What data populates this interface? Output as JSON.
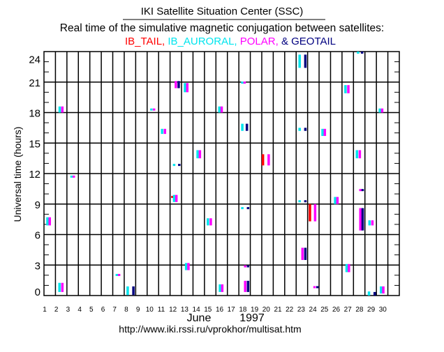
{
  "header": {
    "title": "IKI Satellite Situation Center (SSC)",
    "subtitle": "Real time of the simulative magnetic conjugation between satellites:",
    "sat_names": [
      "IB_TAIL,",
      "IB_AURORAL,",
      "POLAR,",
      "& GEOTAIL"
    ]
  },
  "footer": {
    "month": "June",
    "year": "1997",
    "url": "http://www.iki.rssi.ru/vprokhor/multisat.htm"
  },
  "chart_data": {
    "type": "timeline",
    "title": "IKI Satellite Situation Center (SSC)",
    "ylabel": "Universal time (hours)",
    "xlabel": "June 1997",
    "xlim": [
      1,
      32
    ],
    "ylim": [
      0,
      24
    ],
    "x_ticks": [
      "1",
      "2",
      "3",
      "4",
      "5",
      "6",
      "7",
      "8",
      "9",
      "10",
      "11",
      "12",
      "13",
      "14",
      "15",
      "16",
      "17",
      "18",
      "19",
      "20",
      "21",
      "22",
      "23",
      "24",
      "25",
      "26",
      "27",
      "28",
      "29",
      "30"
    ],
    "y_ticks": [
      "0",
      "3",
      "6",
      "9",
      "12",
      "15",
      "18",
      "21",
      "24"
    ],
    "grid": true,
    "series": [
      {
        "name": "IB_TAIL",
        "color": "#ff0000"
      },
      {
        "name": "IB_AURORAL",
        "color": "#00e5ee"
      },
      {
        "name": "POLAR",
        "color": "#ff00ff"
      },
      {
        "name": "GEOTAIL",
        "color": "#000080"
      }
    ],
    "bar_fields": [
      "series_index",
      "day",
      "start_hour",
      "end_hour"
    ],
    "bars": [
      [
        1,
        2.37,
        18.0,
        18.6
      ],
      [
        2,
        2.6,
        18.0,
        18.6
      ],
      [
        1,
        10.37,
        18.2,
        18.4
      ],
      [
        2,
        10.6,
        18.2,
        18.4
      ],
      [
        1,
        11.3,
        15.9,
        16.4
      ],
      [
        2,
        11.55,
        15.9,
        16.4
      ],
      [
        2,
        12.5,
        20.4,
        21.1
      ],
      [
        3,
        12.75,
        20.4,
        21.1
      ],
      [
        1,
        13.3,
        20.0,
        20.9
      ],
      [
        2,
        13.5,
        20.0,
        20.9
      ],
      [
        1,
        14.4,
        13.5,
        14.3
      ],
      [
        2,
        14.6,
        13.5,
        14.3
      ],
      [
        1,
        16.3,
        18.0,
        18.6
      ],
      [
        2,
        16.5,
        18.0,
        18.6
      ],
      [
        1,
        12.35,
        12.8,
        12.9
      ],
      [
        3,
        12.8,
        12.8,
        12.9
      ],
      [
        1,
        23.3,
        22.4,
        23.7
      ],
      [
        3,
        23.8,
        22.4,
        23.7
      ],
      [
        1,
        28.4,
        23.8,
        24.0
      ],
      [
        3,
        28.75,
        23.8,
        24.0
      ],
      [
        1,
        18.3,
        20.9,
        21.0
      ],
      [
        2,
        18.5,
        20.9,
        21.0
      ],
      [
        1,
        27.3,
        19.9,
        20.7
      ],
      [
        2,
        27.55,
        19.9,
        20.7
      ],
      [
        1,
        30.3,
        18.0,
        18.4
      ],
      [
        2,
        30.5,
        18.0,
        18.4
      ],
      [
        1,
        18.3,
        16.2,
        16.9
      ],
      [
        3,
        18.7,
        16.2,
        16.9
      ],
      [
        1,
        23.3,
        16.2,
        16.5
      ],
      [
        3,
        23.8,
        16.2,
        16.5
      ],
      [
        1,
        25.3,
        15.7,
        16.4
      ],
      [
        2,
        25.5,
        15.7,
        16.4
      ],
      [
        0,
        20.1,
        12.8,
        13.9
      ],
      [
        2,
        20.6,
        12.8,
        13.9
      ],
      [
        1,
        28.3,
        13.5,
        14.3
      ],
      [
        2,
        28.55,
        13.5,
        14.3
      ],
      [
        1,
        3.4,
        11.6,
        11.8
      ],
      [
        2,
        3.6,
        11.6,
        11.8
      ],
      [
        0,
        12.2,
        9.6,
        9.8
      ],
      [
        1,
        12.35,
        9.2,
        9.9
      ],
      [
        2,
        12.55,
        9.2,
        9.9
      ],
      [
        1,
        1.3,
        6.9,
        7.7
      ],
      [
        2,
        1.5,
        6.9,
        7.7
      ],
      [
        1,
        15.3,
        6.9,
        7.6
      ],
      [
        2,
        15.55,
        6.9,
        7.6
      ],
      [
        1,
        13.4,
        2.5,
        3.2
      ],
      [
        2,
        13.6,
        2.5,
        3.2
      ],
      [
        1,
        7.35,
        1.95,
        2.1
      ],
      [
        2,
        7.55,
        1.95,
        2.1
      ],
      [
        1,
        2.35,
        0.35,
        1.25
      ],
      [
        2,
        2.6,
        0.35,
        1.25
      ],
      [
        1,
        8.3,
        0.05,
        0.9
      ],
      [
        3,
        8.8,
        0.05,
        0.9
      ],
      [
        1,
        16.35,
        0.35,
        1.1
      ],
      [
        2,
        16.55,
        0.35,
        1.1
      ],
      [
        1,
        18.3,
        8.5,
        8.7
      ],
      [
        3,
        18.8,
        8.5,
        8.7
      ],
      [
        1,
        23.3,
        9.2,
        9.35
      ],
      [
        3,
        23.8,
        9.2,
        9.35
      ],
      [
        1,
        26.4,
        9.0,
        9.7
      ],
      [
        2,
        26.6,
        9.0,
        9.7
      ],
      [
        2,
        28.6,
        10.3,
        10.45
      ],
      [
        3,
        28.8,
        10.3,
        10.45
      ],
      [
        0,
        24.2,
        7.3,
        9.0
      ],
      [
        2,
        24.65,
        7.3,
        9.0
      ],
      [
        2,
        28.6,
        6.4,
        8.6
      ],
      [
        3,
        28.8,
        6.4,
        8.6
      ],
      [
        1,
        29.4,
        6.9,
        7.4
      ],
      [
        2,
        29.65,
        6.9,
        7.4
      ],
      [
        2,
        23.55,
        3.5,
        4.7
      ],
      [
        3,
        23.8,
        3.5,
        4.7
      ],
      [
        1,
        27.4,
        2.3,
        3.1
      ],
      [
        2,
        27.6,
        2.3,
        3.1
      ],
      [
        2,
        18.55,
        2.8,
        2.95
      ],
      [
        3,
        18.8,
        2.8,
        2.95
      ],
      [
        2,
        18.55,
        0.35,
        1.45
      ],
      [
        3,
        18.8,
        0.35,
        1.45
      ],
      [
        2,
        24.6,
        0.75,
        0.9
      ],
      [
        3,
        24.85,
        0.75,
        0.9
      ],
      [
        1,
        29.35,
        0.0,
        0.4
      ],
      [
        3,
        29.85,
        0.0,
        0.35
      ],
      [
        1,
        30.4,
        0.2,
        0.9
      ],
      [
        2,
        30.6,
        0.2,
        0.9
      ]
    ]
  }
}
